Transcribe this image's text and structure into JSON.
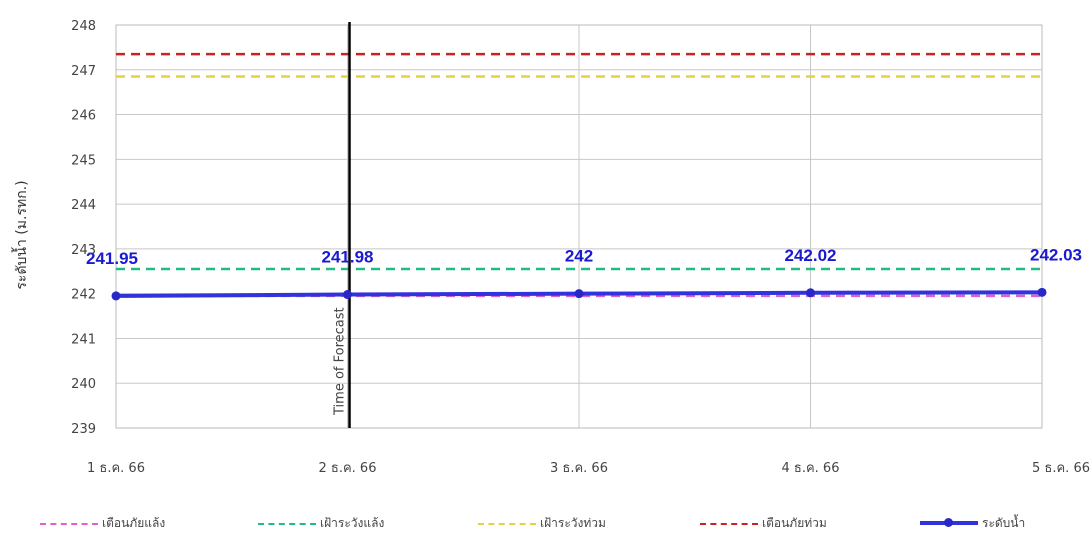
{
  "chart_data": {
    "type": "line",
    "ylabel": "ระดับน้ำ (ม.รทก.)",
    "ylim": [
      239,
      248
    ],
    "y_ticks": [
      "239",
      "240",
      "241",
      "242",
      "243",
      "244",
      "245",
      "246",
      "247",
      "248"
    ],
    "categories": [
      "1 ธ.ค. 66",
      "2 ธ.ค. 66",
      "3 ธ.ค. 66",
      "4 ธ.ค. 66",
      "5 ธ.ค. 66"
    ],
    "annotation": "Time of Forecast",
    "annotation_index": 1,
    "series": [
      {
        "name": "ระดับน้ำ",
        "color": "#3333dd",
        "values": [
          241.95,
          241.98,
          242,
          242.02,
          242.03
        ],
        "labels": [
          "241.95",
          "241.98",
          "242",
          "242.02",
          "242.03"
        ]
      }
    ],
    "reference_lines": [
      {
        "name": "เตือนภัยแล้ง",
        "color": "#e060d0",
        "value": 241.95
      },
      {
        "name": "เฝ้าระวังแล้ง",
        "color": "#22bb88",
        "value": 242.55
      },
      {
        "name": "เฝ้าระวังท่วม",
        "color": "#e8d040",
        "value": 246.85
      },
      {
        "name": "เตือนภัยท่วม",
        "color": "#cc2222",
        "value": 247.35
      }
    ],
    "grid": true,
    "legend": "bottom"
  }
}
